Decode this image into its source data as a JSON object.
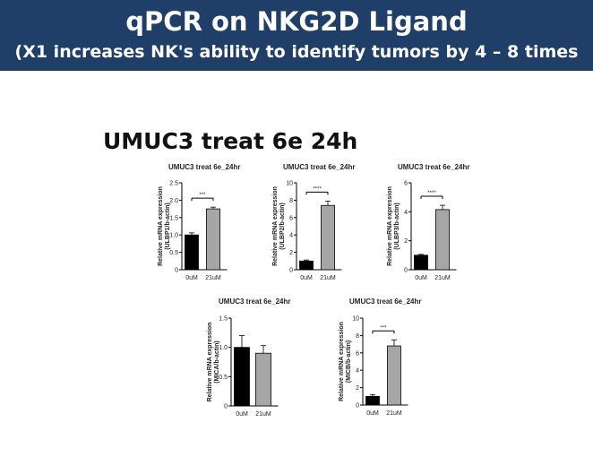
{
  "header": {
    "title": "qPCR on NKG2D Ligand",
    "subtitle": "(X1 increases NK's ability to identify tumors by 4 – 8 times"
  },
  "figure_title": "UMUC3 treat 6e 24h",
  "colors": {
    "header_bg": "#1f3f69",
    "bar_control": "#000000",
    "bar_treated": "#a6a6a6"
  },
  "chart_data": [
    {
      "type": "bar",
      "title": "UMUC3 treat 6e_24hr",
      "ylabel": "Relative mRNA expression (ULBP1/b-actin)",
      "categories": [
        "0uM",
        "21uM"
      ],
      "values": [
        1.0,
        1.75
      ],
      "errors": [
        0.06,
        0.05
      ],
      "ylim": [
        0,
        2.5
      ],
      "yticks": [
        0,
        0.5,
        1.0,
        1.5,
        2.0,
        2.5
      ],
      "ytick_labels": [
        "0",
        "0.5",
        "1.0",
        "1.5",
        "2.0",
        "2.5"
      ],
      "significance": "***"
    },
    {
      "type": "bar",
      "title": "UMUC3 treat 6e_24hr",
      "ylabel": "Relative mRNA expression (ULBP2/b-actin)",
      "categories": [
        "0uM",
        "21uM"
      ],
      "values": [
        1.0,
        7.4
      ],
      "errors": [
        0.12,
        0.5
      ],
      "ylim": [
        0,
        10
      ],
      "yticks": [
        0,
        2,
        4,
        6,
        8,
        10
      ],
      "ytick_labels": [
        "0",
        "2",
        "4",
        "6",
        "8",
        "10"
      ],
      "significance": "****"
    },
    {
      "type": "bar",
      "title": "UMUC3 treat 6e_24hr",
      "ylabel": "Relative mRNA expression (ULBP3/b-actin)",
      "categories": [
        "0uM",
        "21uM"
      ],
      "values": [
        1.0,
        4.15
      ],
      "errors": [
        0.06,
        0.3
      ],
      "ylim": [
        0,
        6
      ],
      "yticks": [
        0,
        2,
        4,
        6
      ],
      "ytick_labels": [
        "0",
        "2",
        "4",
        "6"
      ],
      "significance": "****"
    },
    {
      "type": "bar",
      "title": "UMUC3 treat 6e_24hr",
      "ylabel": "Relative mRNA expression (MICA/b-actin)",
      "categories": [
        "0uM",
        "21uM"
      ],
      "values": [
        1.0,
        0.9
      ],
      "errors": [
        0.2,
        0.13
      ],
      "ylim": [
        0,
        1.5
      ],
      "yticks": [
        0,
        0.5,
        1.0,
        1.5
      ],
      "ytick_labels": [
        "0",
        "0.5",
        "1.0",
        "1.5"
      ],
      "significance": ""
    },
    {
      "type": "bar",
      "title": "UMUC3 treat 6e_24hr",
      "ylabel": "Relative mRNA expression (MICB/b-actin)",
      "categories": [
        "0uM",
        "21uM"
      ],
      "values": [
        1.0,
        6.8
      ],
      "errors": [
        0.2,
        0.7
      ],
      "ylim": [
        0,
        10
      ],
      "yticks": [
        0,
        2,
        4,
        6,
        8,
        10
      ],
      "ytick_labels": [
        "0",
        "2",
        "4",
        "6",
        "8",
        "10"
      ],
      "significance": "***"
    }
  ]
}
